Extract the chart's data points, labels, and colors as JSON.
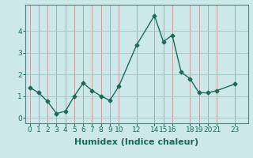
{
  "x": [
    0,
    1,
    2,
    3,
    4,
    5,
    6,
    7,
    8,
    9,
    10,
    12,
    14,
    15,
    16,
    17,
    18,
    19,
    20,
    21,
    23
  ],
  "y": [
    1.4,
    1.15,
    0.75,
    0.2,
    0.3,
    1.0,
    1.6,
    1.25,
    1.0,
    0.8,
    1.45,
    3.35,
    4.7,
    3.5,
    3.8,
    2.1,
    1.8,
    1.15,
    1.15,
    1.25,
    1.55
  ],
  "line_color": "#1a6b5a",
  "marker": "D",
  "marker_size": 2.5,
  "bg_color": "#cce8e8",
  "grid_color_v": "#c8a0a0",
  "grid_color_h": "#a8c8c8",
  "xlabel": "Humidex (Indice chaleur)",
  "xlabel_fontsize": 8,
  "xticks": [
    0,
    1,
    2,
    3,
    4,
    5,
    6,
    7,
    8,
    9,
    10,
    12,
    14,
    15,
    16,
    18,
    19,
    20,
    21,
    23
  ],
  "yticks": [
    0,
    1,
    2,
    3,
    4
  ],
  "ylim": [
    -0.25,
    5.2
  ],
  "xlim": [
    -0.5,
    24.5
  ],
  "tick_fontsize": 6.5,
  "linewidth": 1.0
}
